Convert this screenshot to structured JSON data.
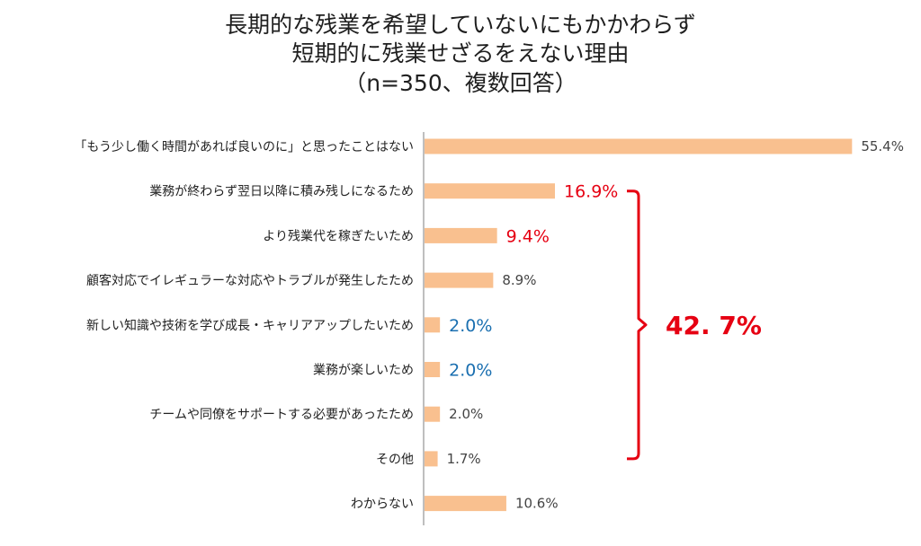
{
  "title_lines": [
    "長期的な残業を希望していないにもかかわらず",
    "短期的に残業せざるをえない理由",
    "（n=350、複数回答）"
  ],
  "chart_data": {
    "type": "bar",
    "orientation": "horizontal",
    "categories": [
      "「もう少し働く時間があれば良いのに」と思ったことはない",
      "業務が終わらず翌日以降に積み残しになるため",
      "より残業代を稼ぎたいため",
      "顧客対応でイレギュラーな対応やトラブルが発生したため",
      "新しい知識や技術を学び成長・キャリアアップしたいため",
      "業務が楽しいため",
      "チームや同僚をサポートする必要があったため",
      "その他",
      "わからない"
    ],
    "values": [
      55.4,
      16.9,
      9.4,
      8.9,
      2.0,
      2.0,
      2.0,
      1.7,
      10.6
    ],
    "value_labels": [
      "55.4%",
      "16.9%",
      "9.4%",
      "8.9%",
      "2.0%",
      "2.0%",
      "2.0%",
      "1.7%",
      "10.6%"
    ],
    "label_colors": [
      "#444444",
      "#e60012",
      "#e60012",
      "#444444",
      "#1a6fb0",
      "#1a6fb0",
      "#444444",
      "#444444",
      "#444444"
    ],
    "emphasized": [
      false,
      true,
      true,
      false,
      true,
      true,
      false,
      false,
      false
    ],
    "bar_color": "#f9c08f",
    "axis_color": "#bfbfbf",
    "annotation": {
      "text": "42. 7%",
      "color": "#e60012",
      "from_index": 1,
      "to_index": 7
    }
  }
}
